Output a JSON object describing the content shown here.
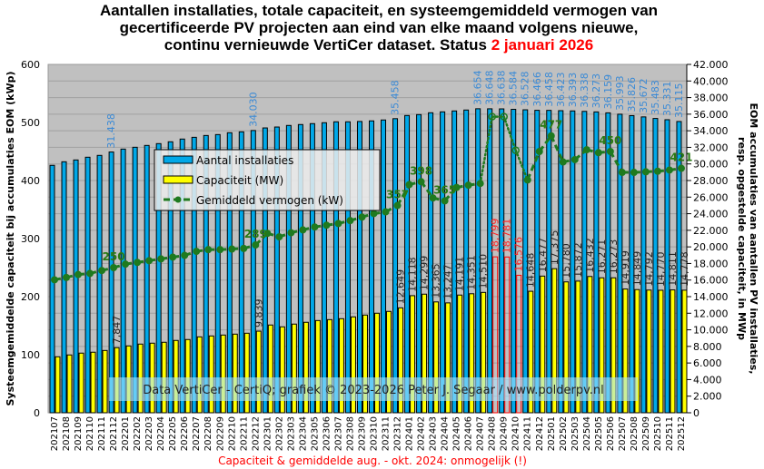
{
  "title": {
    "line1": "Aantallen installaties, totale capaciteit, en systeemgemiddeld vermogen van",
    "line2": "gecertificeerde PV projecten aan eind van elke maand volgens nieuwe,",
    "line3_prefix": "continu vernieuwde VertiCer dataset. Status ",
    "line3_date": "2 januari 2026"
  },
  "watermark": "Data VertiCer - CertiQ; grafiek © 2023-2026 Peter J. Segaar / www.polderpv.nl",
  "footnote": "Capaciteit & gemiddelde aug. - okt. 2024: onmogelijk (!)",
  "colors": {
    "installations": "#00a8e8",
    "capacity": "#ffff00",
    "capacity_invalid": "#ff0000",
    "average": "#1f7a1f",
    "plot_bg": "#c0c0c0",
    "label_blue": "#3a8ad6",
    "footnote": "#ff0000"
  },
  "chart_data": {
    "type": "bar+line",
    "ylabel_left": "Systeemgemiddelde capaciteit bij accumulaties EOM (kWp)",
    "ylabel_right_line1": "EOM accumulaties van aantallen PV installaties,",
    "ylabel_right_line2": "resp. opgestelde capaciteit, in MWp",
    "ylim_left": [
      0,
      600
    ],
    "yticks_left": [
      "0",
      "100",
      "200",
      "300",
      "400",
      "500",
      "600"
    ],
    "ylim_right": [
      0,
      42000
    ],
    "yticks_right": [
      "0",
      "2.000",
      "4.000",
      "6.000",
      "8.000",
      "10.000",
      "12.000",
      "14.000",
      "16.000",
      "18.000",
      "20.000",
      "22.000",
      "24.000",
      "26.000",
      "28.000",
      "30.000",
      "32.000",
      "34.000",
      "36.000",
      "38.000",
      "40.000",
      "42.000"
    ],
    "grid": true,
    "legend_placement": "upper-left",
    "legend": [
      "Aantal installaties",
      "Capaciteit (MW)",
      "Gemiddeld vermogen (kW)"
    ],
    "categories": [
      "202107",
      "202108",
      "202109",
      "202110",
      "202111",
      "202112",
      "202201",
      "202202",
      "202203",
      "202204",
      "202205",
      "202206",
      "202207",
      "202208",
      "202209",
      "202210",
      "202211",
      "202212",
      "202301",
      "202302",
      "202303",
      "202304",
      "202305",
      "202306",
      "202307",
      "202308",
      "202309",
      "202310",
      "202311",
      "202312",
      "202401",
      "202402",
      "202403",
      "202404",
      "202405",
      "202406",
      "202407",
      "202408",
      "202409",
      "202410",
      "202411",
      "202412",
      "202501",
      "202502",
      "202503",
      "202504",
      "202505",
      "202506",
      "202507",
      "202508",
      "202509",
      "202510",
      "202511",
      "202512"
    ],
    "invalid_months": [
      "202408",
      "202409",
      "202410"
    ],
    "series": [
      {
        "name": "Aantal installaties",
        "axis": "right",
        "type": "bar",
        "values": [
          29830,
          30260,
          30480,
          30810,
          31030,
          31438,
          31790,
          32010,
          32230,
          32450,
          32670,
          33000,
          33210,
          33430,
          33540,
          33760,
          33870,
          34030,
          34340,
          34450,
          34640,
          34750,
          34860,
          34970,
          35080,
          35080,
          35120,
          35190,
          35300,
          35458,
          35840,
          35950,
          36170,
          36280,
          36390,
          36500,
          36654,
          36648,
          36638,
          36584,
          36528,
          36466,
          36458,
          36423,
          36393,
          36338,
          36273,
          36159,
          35993,
          35826,
          35672,
          35483,
          35331,
          35115
        ],
        "labeled": [
          "202112",
          "202212",
          "202312",
          "202407",
          "202408",
          "202409",
          "202410",
          "202411",
          "202412",
          "202501",
          "202502",
          "202503",
          "202504",
          "202505",
          "202506",
          "202507",
          "202508",
          "202509",
          "202510",
          "202511",
          "202512"
        ]
      },
      {
        "name": "Capaciteit (MW)",
        "axis": "right",
        "type": "bar",
        "values": [
          6750,
          6970,
          7190,
          7300,
          7510,
          7847,
          8060,
          8280,
          8390,
          8500,
          8720,
          8830,
          9150,
          9260,
          9370,
          9480,
          9590,
          9839,
          10580,
          10360,
          10690,
          10910,
          11120,
          11230,
          11340,
          11560,
          11780,
          12000,
          12220,
          12649,
          14118,
          14299,
          13365,
          13247,
          14191,
          14351,
          14510,
          18799,
          18781,
          16576,
          14648,
          16477,
          17375,
          15780,
          15872,
          16432,
          16271,
          16273,
          14919,
          14849,
          14792,
          14770,
          14811,
          14778
        ],
        "labeled": [
          "202112",
          "202212",
          "202312",
          "202401",
          "202402",
          "202403",
          "202404",
          "202405",
          "202406",
          "202407",
          "202408",
          "202409",
          "202410",
          "202411",
          "202412",
          "202501",
          "202502",
          "202503",
          "202504",
          "202505",
          "202506",
          "202507",
          "202508",
          "202509",
          "202510",
          "202511",
          "202512"
        ]
      },
      {
        "name": "Gemiddeld vermogen (kW)",
        "axis": "left",
        "type": "line",
        "values": [
          229,
          233,
          238,
          240,
          245,
          250,
          256,
          259,
          262,
          265,
          268,
          271,
          278,
          281,
          281,
          282,
          283,
          289,
          309,
          303,
          310,
          315,
          320,
          323,
          326,
          331,
          337,
          343,
          346,
          357,
          393,
          398,
          370,
          365,
          388,
          392,
          395,
          510,
          510,
          452,
          401,
          450,
          477,
          432,
          436,
          453,
          448,
          450,
          414,
          414,
          415,
          416,
          418,
          421
        ],
        "point_labels": [
          {
            "month": "202112",
            "text": "250"
          },
          {
            "month": "202212",
            "text": "289"
          },
          {
            "month": "202312",
            "text": "357"
          },
          {
            "month": "202402",
            "text": "398"
          },
          {
            "month": "202404",
            "text": "365"
          },
          {
            "month": "202501",
            "text": "477"
          },
          {
            "month": "202506",
            "text": "450"
          },
          {
            "month": "202512",
            "text": "421"
          }
        ]
      }
    ]
  }
}
